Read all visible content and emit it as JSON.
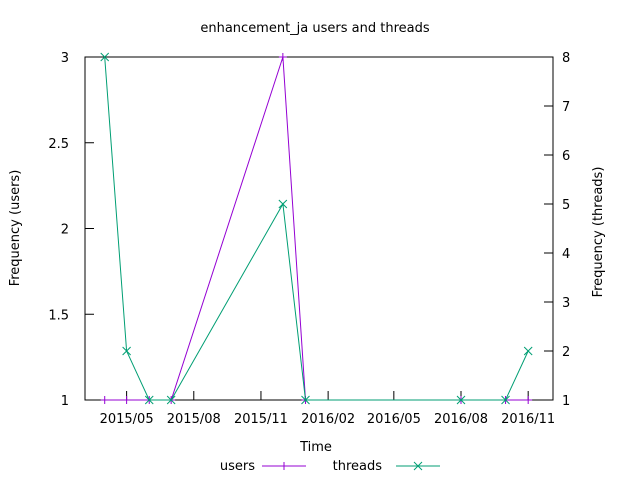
{
  "chart_data": {
    "type": "line",
    "title": "enhancement_ja users and threads",
    "xlabel": "Time",
    "ylabel": "Frequency (users)",
    "y2label": "Frequency (threads)",
    "x_ticks": [
      "2015/05",
      "2015/08",
      "2015/11",
      "2016/02",
      "2016/05",
      "2016/08",
      "2016/11"
    ],
    "y_ticks": [
      "1",
      "1.5",
      "2",
      "2.5",
      "3"
    ],
    "y2_ticks": [
      "1",
      "2",
      "3",
      "4",
      "5",
      "6",
      "7",
      "8"
    ],
    "ylim": [
      1,
      3
    ],
    "y2lim": [
      1,
      8
    ],
    "grid": false,
    "legend_position": "bottom-center",
    "series": [
      {
        "name": "users",
        "axis": "left",
        "color": "#9400d3",
        "marker": "plus",
        "points": [
          {
            "x": "2015-04-01",
            "y": 1
          },
          {
            "x": "2015-05-01",
            "y": 1
          },
          {
            "x": "2015-06-01",
            "y": 1
          },
          {
            "x": "2015-07-01",
            "y": 1
          },
          {
            "x": "2015-12-01",
            "y": 3
          },
          {
            "x": "2016-01-01",
            "y": 1
          },
          {
            "x": "2016-08-01",
            "y": 1
          },
          {
            "x": "2016-10-01",
            "y": 1
          },
          {
            "x": "2016-11-01",
            "y": 1
          }
        ]
      },
      {
        "name": "threads",
        "axis": "right",
        "color": "#009e73",
        "marker": "cross",
        "points": [
          {
            "x": "2015-04-01",
            "y": 8
          },
          {
            "x": "2015-05-01",
            "y": 2
          },
          {
            "x": "2015-06-01",
            "y": 1
          },
          {
            "x": "2015-07-01",
            "y": 1
          },
          {
            "x": "2015-12-01",
            "y": 5
          },
          {
            "x": "2016-01-01",
            "y": 1
          },
          {
            "x": "2016-08-01",
            "y": 1
          },
          {
            "x": "2016-10-01",
            "y": 1
          },
          {
            "x": "2016-11-01",
            "y": 2
          }
        ]
      }
    ]
  }
}
